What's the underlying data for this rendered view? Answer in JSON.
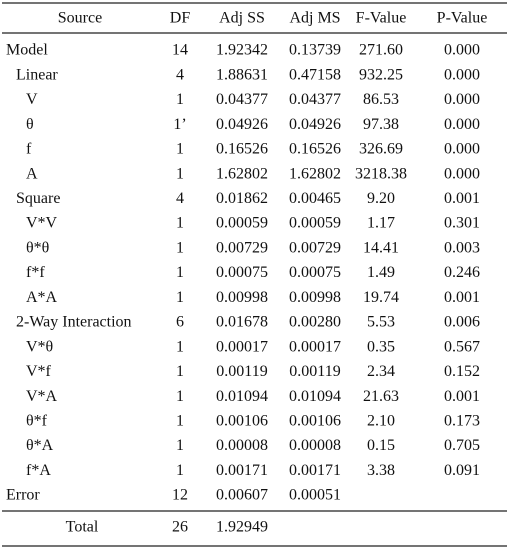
{
  "table": {
    "header": [
      "Source",
      "DF",
      "Adj SS",
      "Adj MS",
      "F-Value",
      "P-Value"
    ],
    "rows": [
      [
        "Model",
        "14",
        "1.92342",
        "0.13739",
        "271.60",
        "0.000"
      ],
      [
        "Linear",
        "4",
        "1.88631",
        "0.47158",
        "932.25",
        "0.000"
      ],
      [
        "V",
        "1",
        "0.04377",
        "0.04377",
        "86.53",
        "0.000"
      ],
      [
        "θ",
        "1’",
        "0.04926",
        "0.04926",
        "97.38",
        "0.000"
      ],
      [
        "f",
        "1",
        "0.16526",
        "0.16526",
        "326.69",
        "0.000"
      ],
      [
        "A",
        "1",
        "1.62802",
        "1.62802",
        "3218.38",
        "0.000"
      ],
      [
        "Square",
        "4",
        "0.01862",
        "0.00465",
        "9.20",
        "0.001"
      ],
      [
        "V*V",
        "1",
        "0.00059",
        "0.00059",
        "1.17",
        "0.301"
      ],
      [
        "θ*θ",
        "1",
        "0.00729",
        "0.00729",
        "14.41",
        "0.003"
      ],
      [
        "f*f",
        "1",
        "0.00075",
        "0.00075",
        "1.49",
        "0.246"
      ],
      [
        "A*A",
        "1",
        "0.00998",
        "0.00998",
        "19.74",
        "0.001"
      ],
      [
        "2-Way Interaction",
        "6",
        "0.01678",
        "0.00280",
        "5.53",
        "0.006"
      ],
      [
        "V*θ",
        "1",
        "0.00017",
        "0.00017",
        "0.35",
        "0.567"
      ],
      [
        "V*f",
        "1",
        "0.00119",
        "0.00119",
        "2.34",
        "0.152"
      ],
      [
        "V*A",
        "1",
        "0.01094",
        "0.01094",
        "21.63",
        "0.001"
      ],
      [
        "θ*f",
        "1",
        "0.00106",
        "0.00106",
        "2.10",
        "0.173"
      ],
      [
        "θ*A",
        "1",
        "0.00008",
        "0.00008",
        "0.15",
        "0.705"
      ],
      [
        "f*A",
        "1",
        "0.00171",
        "0.00171",
        "3.38",
        "0.091"
      ],
      [
        "Error",
        "12",
        "0.00607",
        "0.00051"
      ]
    ],
    "total": [
      "Total",
      "26",
      "1.92949"
    ]
  }
}
